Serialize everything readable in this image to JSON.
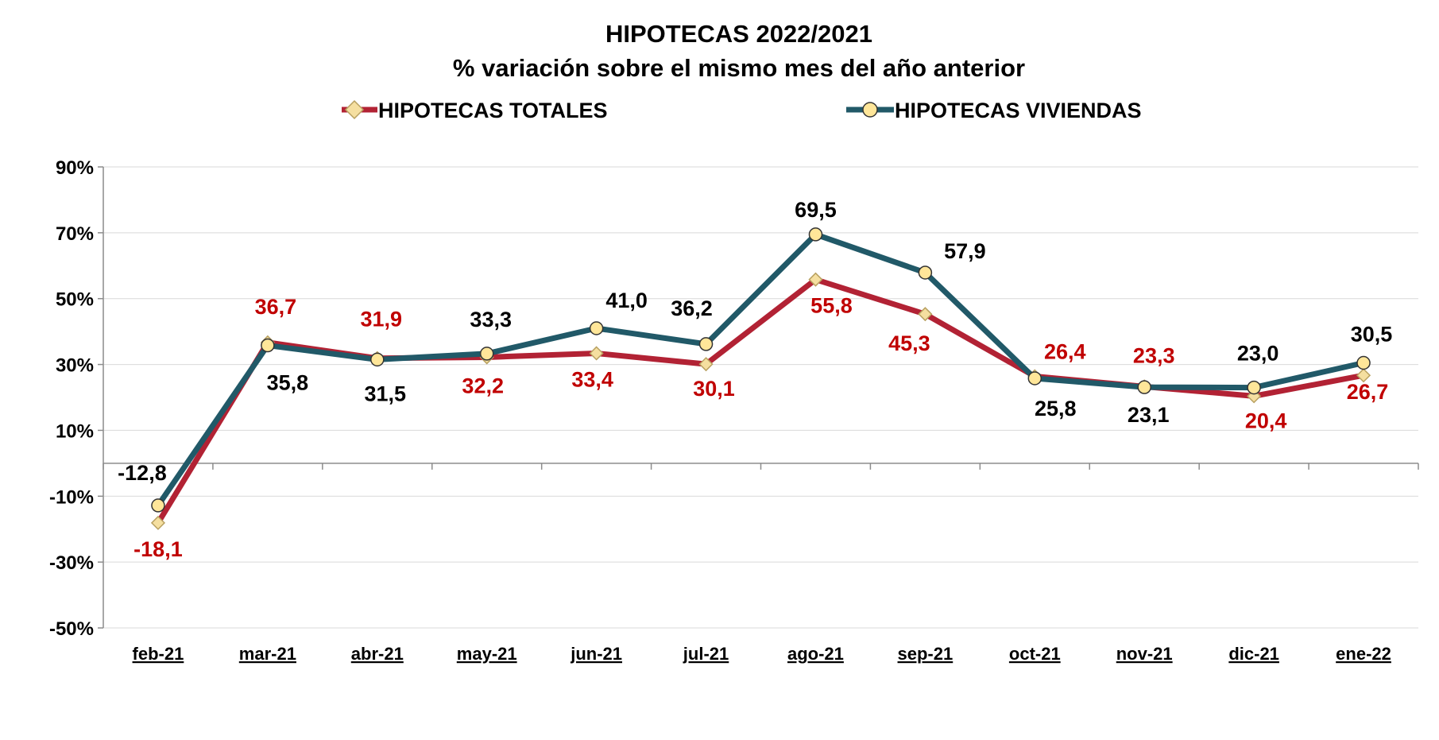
{
  "chart_data": {
    "type": "line",
    "title": "HIPOTECAS 2022/2021",
    "subtitle": "% variación sobre el mismo mes del año anterior",
    "categories": [
      "feb-21",
      "mar-21",
      "abr-21",
      "may-21",
      "jun-21",
      "jul-21",
      "ago-21",
      "sep-21",
      "oct-21",
      "nov-21",
      "dic-21",
      "ene-22"
    ],
    "ylim": [
      -50,
      90
    ],
    "yticks": [
      90,
      70,
      50,
      30,
      10,
      -10,
      -30,
      -50
    ],
    "ytick_labels": [
      "90%",
      "70%",
      "50%",
      "30%",
      "10%",
      "-10%",
      "-30%",
      "-50%"
    ],
    "grid": true,
    "legend_position": "top",
    "series": [
      {
        "name": "HIPOTECAS TOTALES",
        "color": "#b22234",
        "marker": "diamond",
        "marker_color": "#f5dfa0",
        "label_color": "#c00000",
        "values": [
          -18.1,
          36.7,
          31.9,
          32.2,
          33.4,
          30.1,
          55.8,
          45.3,
          26.4,
          23.3,
          20.4,
          26.7
        ],
        "labels": [
          "-18,1",
          "36,7",
          "31,9",
          "32,2",
          "33,4",
          "30,1",
          "55,8",
          "45,3",
          "26,4",
          "23,3",
          "20,4",
          "26,7"
        ]
      },
      {
        "name": "HIPOTECAS VIVIENDAS",
        "color": "#215968",
        "marker": "circle",
        "marker_color": "#ffe699",
        "label_color": "#000000",
        "values": [
          -12.8,
          35.8,
          31.5,
          33.3,
          41.0,
          36.2,
          69.5,
          57.9,
          25.8,
          23.1,
          23.0,
          30.5
        ],
        "labels": [
          "-12,8",
          "35,8",
          "31,5",
          "33,3",
          "41,0",
          "36,2",
          "69,5",
          "57,9",
          "25,8",
          "23,1",
          "23,0",
          "30,5"
        ]
      }
    ]
  }
}
